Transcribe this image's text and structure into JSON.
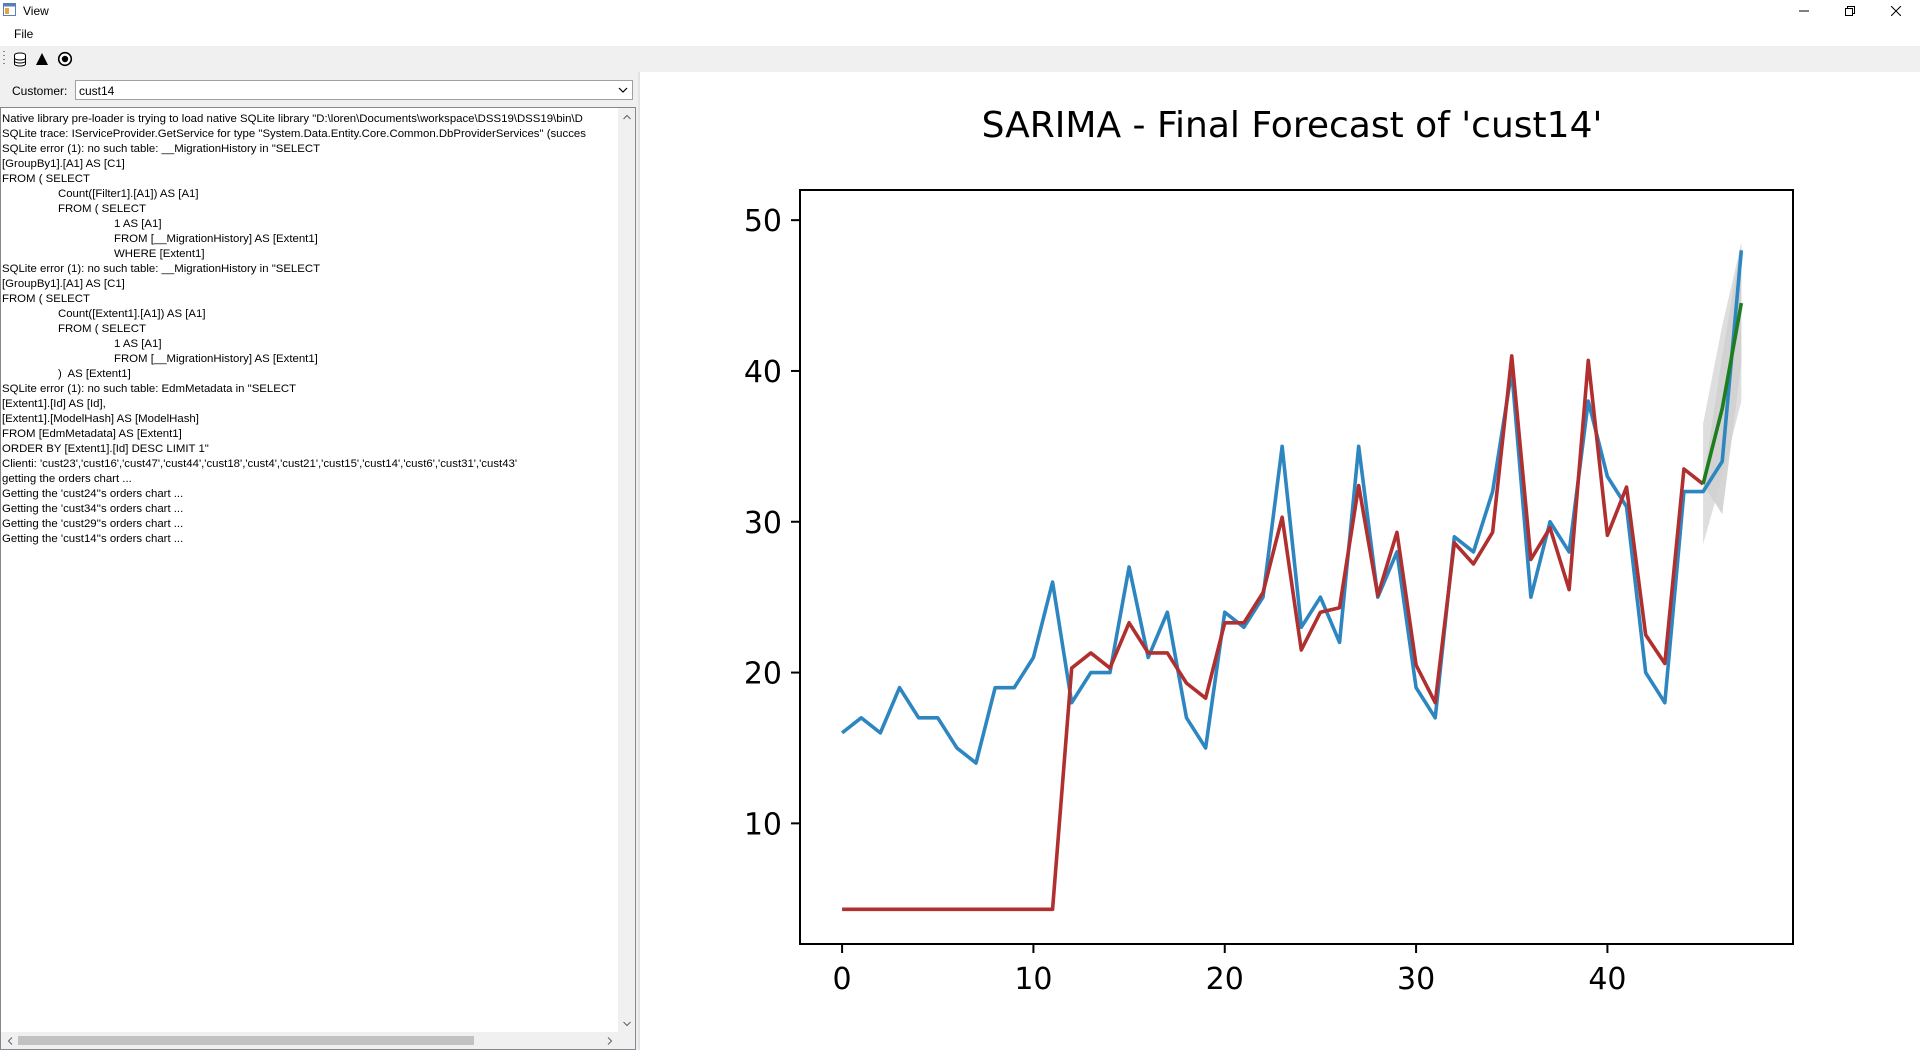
{
  "window": {
    "title": "View",
    "menu": [
      "File"
    ],
    "toolbar_icons": [
      "database-icon",
      "triangle-icon",
      "radio-target-icon"
    ]
  },
  "customer": {
    "label": "Customer:",
    "selected": "cust14"
  },
  "log": {
    "lines": [
      "Native library pre-loader is trying to load native SQLite library \"D:\\loren\\Documents\\workspace\\DSS19\\DSS19\\bin\\D",
      "SQLite trace: IServiceProvider.GetService for type \"System.Data.Entity.Core.Common.DbProviderServices\" (succes",
      "SQLite error (1): no such table: __MigrationHistory in \"SELECT",
      "[GroupBy1].[A1] AS [C1]",
      "FROM ( SELECT",
      "\tCount([Filter1].[A1]) AS [A1]",
      "\tFROM ( SELECT",
      "\t\t1 AS [A1]",
      "\t\tFROM [__MigrationHistory] AS [Extent1]",
      "\t\tWHERE [Extent1]",
      "SQLite error (1): no such table: __MigrationHistory in \"SELECT",
      "[GroupBy1].[A1] AS [C1]",
      "FROM ( SELECT",
      "\tCount([Extent1].[A1]) AS [A1]",
      "\tFROM ( SELECT",
      "\t\t1 AS [A1]",
      "\t\tFROM [__MigrationHistory] AS [Extent1]",
      "\t)  AS [Extent1]",
      "SQLite error (1): no such table: EdmMetadata in \"SELECT",
      "[Extent1].[Id] AS [Id],",
      "[Extent1].[ModelHash] AS [ModelHash]",
      "FROM [EdmMetadata] AS [Extent1]",
      "ORDER BY [Extent1].[Id] DESC LIMIT 1\"",
      "Clienti: 'cust23','cust16','cust47','cust44','cust18','cust4','cust21','cust15','cust14','cust6','cust31','cust43'",
      "getting the orders chart ...",
      "Getting the 'cust24''s orders chart ...",
      "Getting the 'cust34''s orders chart ...",
      "Getting the 'cust29''s orders chart ...",
      "Getting the 'cust14''s orders chart ..."
    ]
  },
  "chart_data": {
    "type": "line",
    "title": "SARIMA - Final Forecast of 'cust14'",
    "xlabel": "",
    "ylabel": "",
    "xlim": [
      -2.2,
      49.7
    ],
    "ylim": [
      2,
      52
    ],
    "xticks": [
      0,
      10,
      20,
      30,
      40
    ],
    "yticks": [
      10,
      20,
      30,
      40,
      50
    ],
    "grid": false,
    "colors": {
      "actual": "#2e86c1",
      "fitted": "#b03030",
      "forecast": "#1e7d1e",
      "ci": "#d0d0d0"
    },
    "series": [
      {
        "values": [
          16,
          17,
          16,
          19,
          17,
          17,
          15,
          14,
          19,
          19,
          21,
          26,
          18,
          20,
          20,
          27,
          21,
          24,
          17,
          15,
          24,
          23,
          25,
          35,
          23,
          25,
          22,
          35,
          25,
          28,
          19,
          17,
          29,
          28,
          32,
          40,
          25,
          30,
          28,
          38,
          33,
          31,
          20,
          18,
          32,
          32,
          34,
          48
        ]
      },
      {
        "values": [
          4.3,
          4.3,
          4.3,
          4.3,
          4.3,
          4.3,
          4.3,
          4.3,
          4.3,
          4.3,
          4.3,
          4.3,
          20.3,
          21.3,
          20.3,
          23.3,
          21.3,
          21.3,
          19.3,
          18.3,
          23.3,
          23.3,
          25.3,
          30.3,
          21.5,
          24,
          24.3,
          32.4,
          25.1,
          29.3,
          20.5,
          18,
          28.6,
          27.2,
          29.3,
          41,
          27.5,
          29.6,
          25.5,
          40.7,
          29.1,
          32.3,
          22.5,
          20.6,
          33.5,
          32.5
        ]
      },
      {
        "x": [
          45,
          46,
          47
        ],
        "values": [
          32.5,
          37.5,
          44.5
        ]
      }
    ],
    "confidence_interval": {
      "x": [
        45,
        46,
        47
      ],
      "lower": [
        32.5,
        30.5,
        40.5
      ],
      "upper": [
        32.5,
        41,
        48.5
      ],
      "outer_lower": [
        28.5,
        33,
        38
      ],
      "outer_upper": [
        36.5,
        43,
        48.5
      ]
    }
  }
}
